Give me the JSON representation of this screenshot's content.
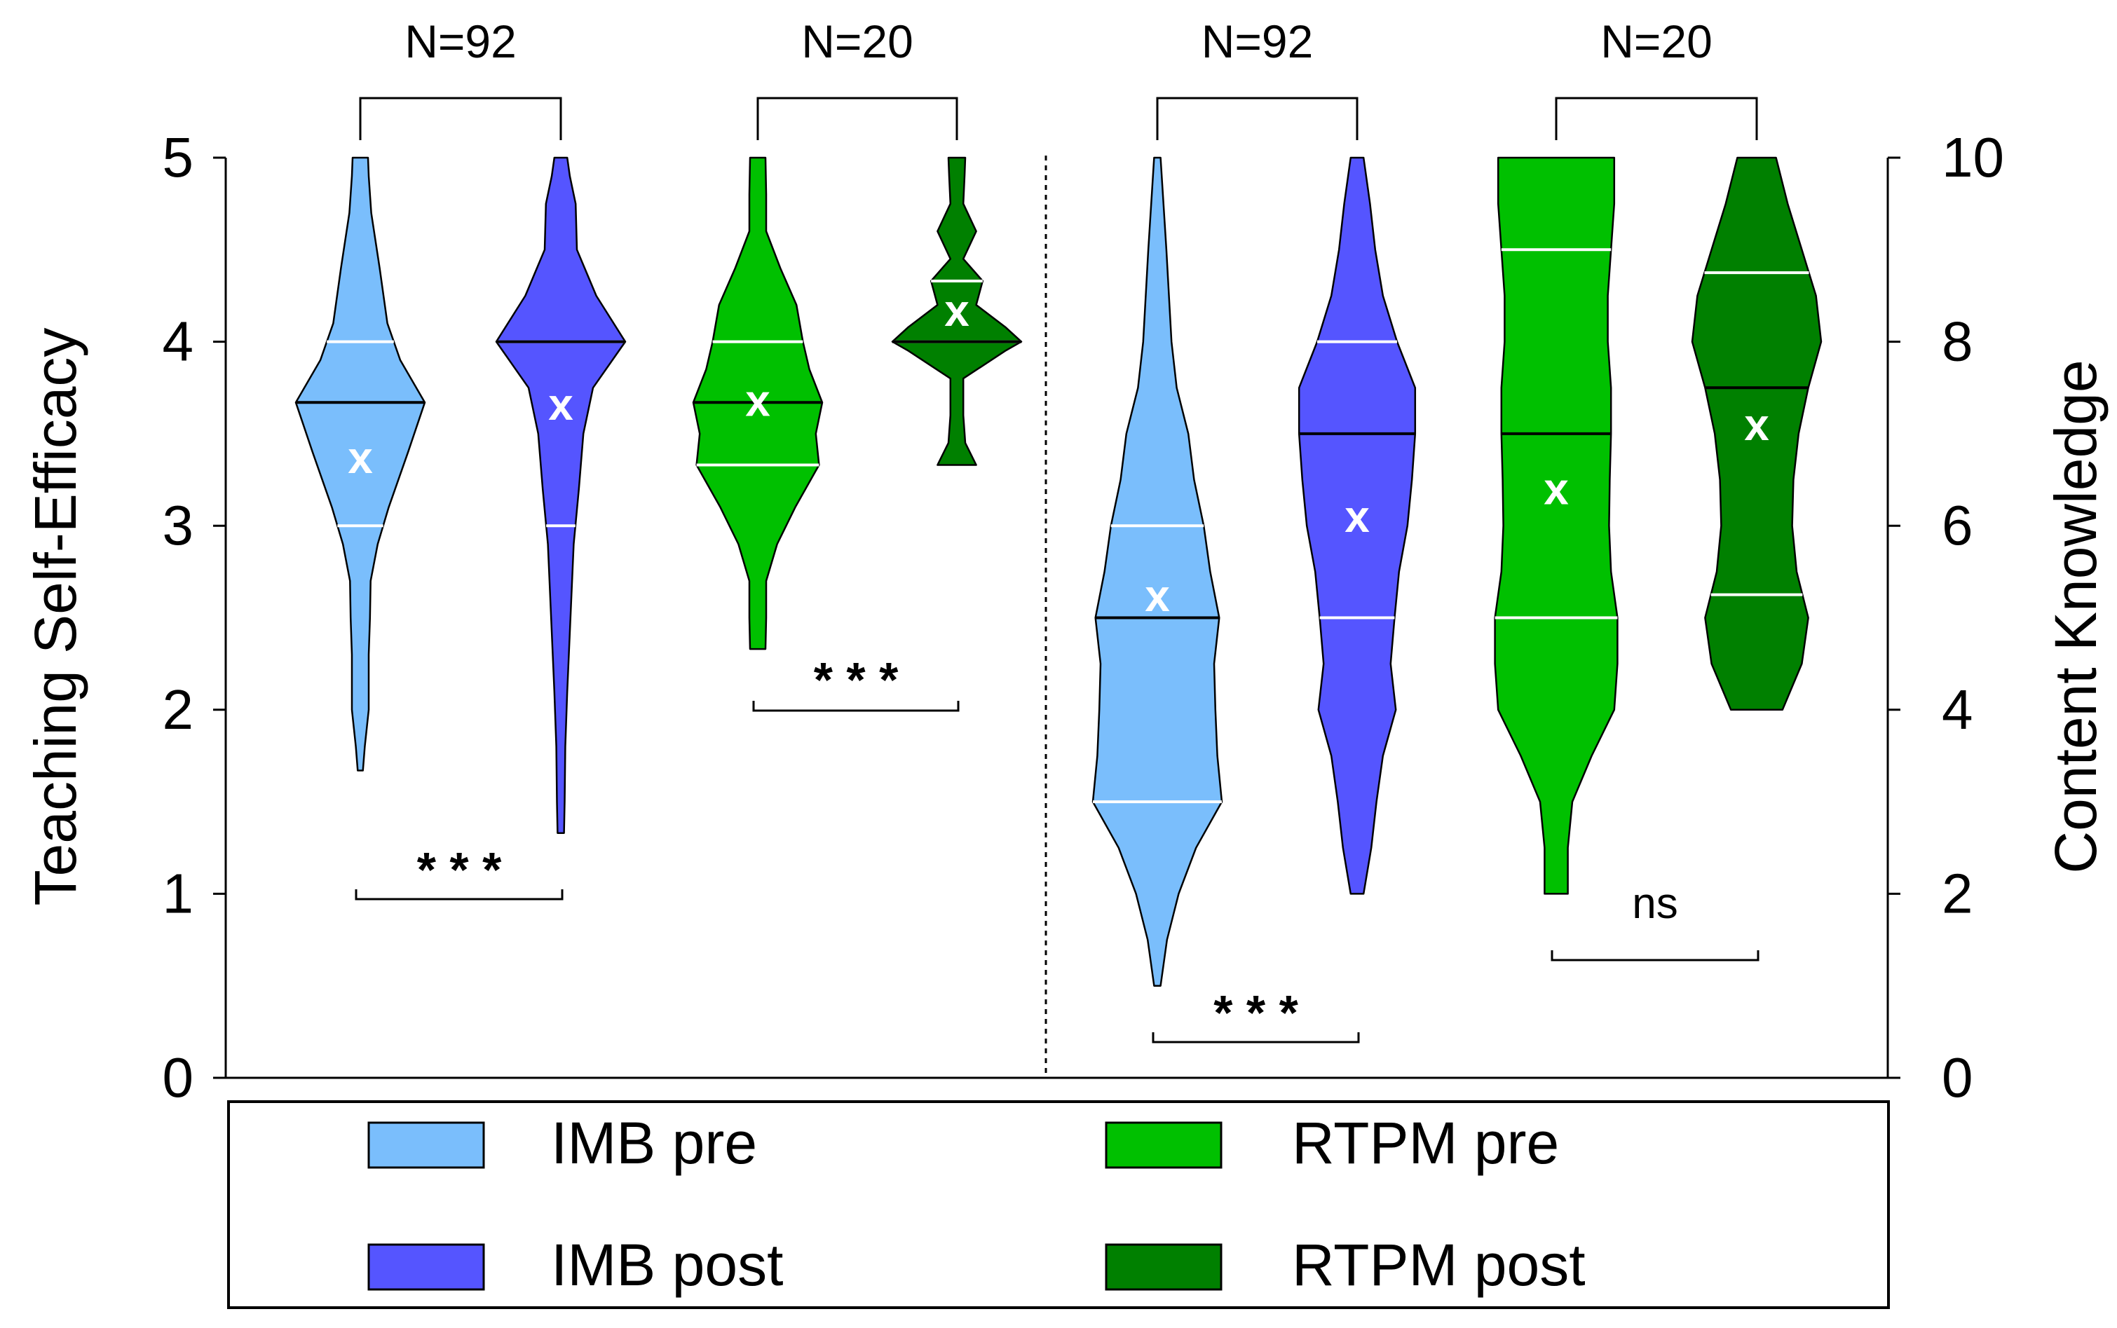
{
  "chart_data": {
    "type": "violin",
    "left_axis": {
      "label": "Teaching Self-Efficacy",
      "range": [
        0,
        5
      ],
      "ticks": [
        "0",
        "1",
        "2",
        "3",
        "4",
        "5"
      ]
    },
    "right_axis": {
      "label": "Content Knowledge",
      "range": [
        0,
        10
      ],
      "ticks": [
        "0",
        "2",
        "4",
        "6",
        "8",
        "10"
      ]
    },
    "colors": {
      "IMB pre": "#7ABEFC",
      "IMB post": "#5555FF",
      "RTPM pre": "#00C000",
      "RTPM post": "#008000"
    },
    "legend": {
      "placement": "bottom",
      "entries": [
        "IMB pre",
        "RTPM pre",
        "IMB post",
        "RTPM post"
      ]
    },
    "annotations": {
      "n_labels": [
        "N=92",
        "N=20",
        "N=92",
        "N=20"
      ],
      "significance": [
        "* * *",
        "* * *",
        "* * *",
        "ns"
      ]
    },
    "series": [
      {
        "name": "IMB pre",
        "axis": "left",
        "n": 92,
        "min": 1.67,
        "max": 5.0,
        "median": 3.67,
        "q1": 3.0,
        "q3": 4.0,
        "mean": 3.37,
        "profile": [
          [
            1.67,
            0.04
          ],
          [
            1.8,
            0.07
          ],
          [
            2.0,
            0.13
          ],
          [
            2.3,
            0.13
          ],
          [
            2.5,
            0.15
          ],
          [
            2.7,
            0.16
          ],
          [
            2.9,
            0.27
          ],
          [
            3.1,
            0.44
          ],
          [
            3.4,
            0.74
          ],
          [
            3.67,
            1.0
          ],
          [
            3.9,
            0.62
          ],
          [
            4.1,
            0.42
          ],
          [
            4.4,
            0.3
          ],
          [
            4.7,
            0.17
          ],
          [
            4.9,
            0.13
          ],
          [
            5.0,
            0.12
          ]
        ]
      },
      {
        "name": "IMB post",
        "axis": "left",
        "n": 92,
        "min": 1.33,
        "max": 5.0,
        "median": 4.0,
        "q1": 3.0,
        "q3": 4.0,
        "mean": 3.66,
        "profile": [
          [
            1.33,
            0.05
          ],
          [
            1.5,
            0.06
          ],
          [
            1.8,
            0.07
          ],
          [
            2.1,
            0.1
          ],
          [
            2.5,
            0.15
          ],
          [
            2.9,
            0.2
          ],
          [
            3.2,
            0.28
          ],
          [
            3.5,
            0.35
          ],
          [
            3.75,
            0.5
          ],
          [
            4.0,
            1.0
          ],
          [
            4.25,
            0.55
          ],
          [
            4.5,
            0.25
          ],
          [
            4.75,
            0.23
          ],
          [
            4.9,
            0.14
          ],
          [
            5.0,
            0.1
          ]
        ]
      },
      {
        "name": "RTPM pre",
        "axis": "left",
        "n": 20,
        "min": 2.33,
        "max": 5.0,
        "median": 3.67,
        "q1": 3.33,
        "q3": 4.0,
        "mean": 3.68,
        "profile": [
          [
            2.33,
            0.12
          ],
          [
            2.5,
            0.13
          ],
          [
            2.7,
            0.13
          ],
          [
            2.9,
            0.3
          ],
          [
            3.1,
            0.58
          ],
          [
            3.33,
            0.95
          ],
          [
            3.5,
            0.9
          ],
          [
            3.67,
            1.0
          ],
          [
            3.85,
            0.8
          ],
          [
            4.0,
            0.7
          ],
          [
            4.2,
            0.6
          ],
          [
            4.4,
            0.35
          ],
          [
            4.6,
            0.13
          ],
          [
            4.8,
            0.13
          ],
          [
            5.0,
            0.12
          ]
        ]
      },
      {
        "name": "RTPM post",
        "axis": "left",
        "n": 20,
        "min": 3.33,
        "max": 5.0,
        "median": 4.0,
        "q1": 4.0,
        "q3": 4.33,
        "mean": 4.17,
        "profile": [
          [
            3.33,
            0.3
          ],
          [
            3.45,
            0.13
          ],
          [
            3.6,
            0.1
          ],
          [
            3.8,
            0.1
          ],
          [
            3.95,
            0.75
          ],
          [
            4.0,
            1.0
          ],
          [
            4.08,
            0.75
          ],
          [
            4.2,
            0.3
          ],
          [
            4.33,
            0.4
          ],
          [
            4.45,
            0.1
          ],
          [
            4.6,
            0.3
          ],
          [
            4.75,
            0.1
          ],
          [
            4.9,
            0.12
          ],
          [
            5.0,
            0.13
          ]
        ]
      },
      {
        "name": "IMB pre",
        "axis": "right",
        "n": 92,
        "min": 1.0,
        "max": 10.0,
        "median": 5.0,
        "q1": 3.0,
        "q3": 6.0,
        "mean": 5.24,
        "profile": [
          [
            1.0,
            0.05
          ],
          [
            1.5,
            0.15
          ],
          [
            2.0,
            0.33
          ],
          [
            2.5,
            0.6
          ],
          [
            3.0,
            1.0
          ],
          [
            3.5,
            0.93
          ],
          [
            4.0,
            0.9
          ],
          [
            4.5,
            0.88
          ],
          [
            5.0,
            0.96
          ],
          [
            5.5,
            0.82
          ],
          [
            6.0,
            0.72
          ],
          [
            6.5,
            0.57
          ],
          [
            7.0,
            0.48
          ],
          [
            7.5,
            0.3
          ],
          [
            8.0,
            0.22
          ],
          [
            9.0,
            0.14
          ],
          [
            10.0,
            0.05
          ]
        ]
      },
      {
        "name": "IMB post",
        "axis": "right",
        "n": 92,
        "min": 2.0,
        "max": 10.0,
        "median": 7.0,
        "q1": 5.0,
        "q3": 8.0,
        "mean": 6.1,
        "profile": [
          [
            2.0,
            0.1
          ],
          [
            2.5,
            0.22
          ],
          [
            3.0,
            0.3
          ],
          [
            3.5,
            0.4
          ],
          [
            4.0,
            0.6
          ],
          [
            4.5,
            0.52
          ],
          [
            5.0,
            0.58
          ],
          [
            5.5,
            0.65
          ],
          [
            6.0,
            0.78
          ],
          [
            6.5,
            0.85
          ],
          [
            7.0,
            0.9
          ],
          [
            7.5,
            0.9
          ],
          [
            8.0,
            0.62
          ],
          [
            8.5,
            0.4
          ],
          [
            9.0,
            0.28
          ],
          [
            9.5,
            0.2
          ],
          [
            10.0,
            0.1
          ]
        ]
      },
      {
        "name": "RTPM pre",
        "axis": "right",
        "n": 20,
        "min": 2.0,
        "max": 10.0,
        "median": 7.0,
        "q1": 5.0,
        "q3": 9.0,
        "mean": 6.4,
        "profile": [
          [
            2.0,
            0.18
          ],
          [
            2.5,
            0.18
          ],
          [
            3.0,
            0.25
          ],
          [
            3.5,
            0.55
          ],
          [
            4.0,
            0.9
          ],
          [
            4.5,
            0.95
          ],
          [
            5.0,
            0.95
          ],
          [
            5.5,
            0.85
          ],
          [
            6.0,
            0.82
          ],
          [
            6.5,
            0.83
          ],
          [
            7.0,
            0.85
          ],
          [
            7.5,
            0.85
          ],
          [
            8.0,
            0.8
          ],
          [
            8.5,
            0.8
          ],
          [
            9.0,
            0.85
          ],
          [
            9.5,
            0.9
          ],
          [
            10.0,
            0.9
          ]
        ]
      },
      {
        "name": "RTPM post",
        "axis": "right",
        "n": 20,
        "min": 4.0,
        "max": 10.0,
        "median": 7.5,
        "q1": 5.25,
        "q3": 8.75,
        "mean": 7.1,
        "profile": [
          [
            4.0,
            0.4
          ],
          [
            4.5,
            0.7
          ],
          [
            5.0,
            0.8
          ],
          [
            5.5,
            0.62
          ],
          [
            6.0,
            0.55
          ],
          [
            6.5,
            0.57
          ],
          [
            7.0,
            0.65
          ],
          [
            7.5,
            0.8
          ],
          [
            8.0,
            1.0
          ],
          [
            8.5,
            0.92
          ],
          [
            9.0,
            0.7
          ],
          [
            9.5,
            0.48
          ],
          [
            10.0,
            0.3
          ]
        ]
      }
    ],
    "comparisons": [
      {
        "pair": [
          "IMB pre",
          "IMB post"
        ],
        "axis": "left",
        "n_label": "N=92",
        "result": "* * *"
      },
      {
        "pair": [
          "RTPM pre",
          "RTPM post"
        ],
        "axis": "left",
        "n_label": "N=20",
        "result": "* * *"
      },
      {
        "pair": [
          "IMB pre",
          "IMB post"
        ],
        "axis": "right",
        "n_label": "N=92",
        "result": "* * *"
      },
      {
        "pair": [
          "RTPM pre",
          "RTPM post"
        ],
        "axis": "right",
        "n_label": "N=20",
        "result": "ns"
      }
    ]
  }
}
